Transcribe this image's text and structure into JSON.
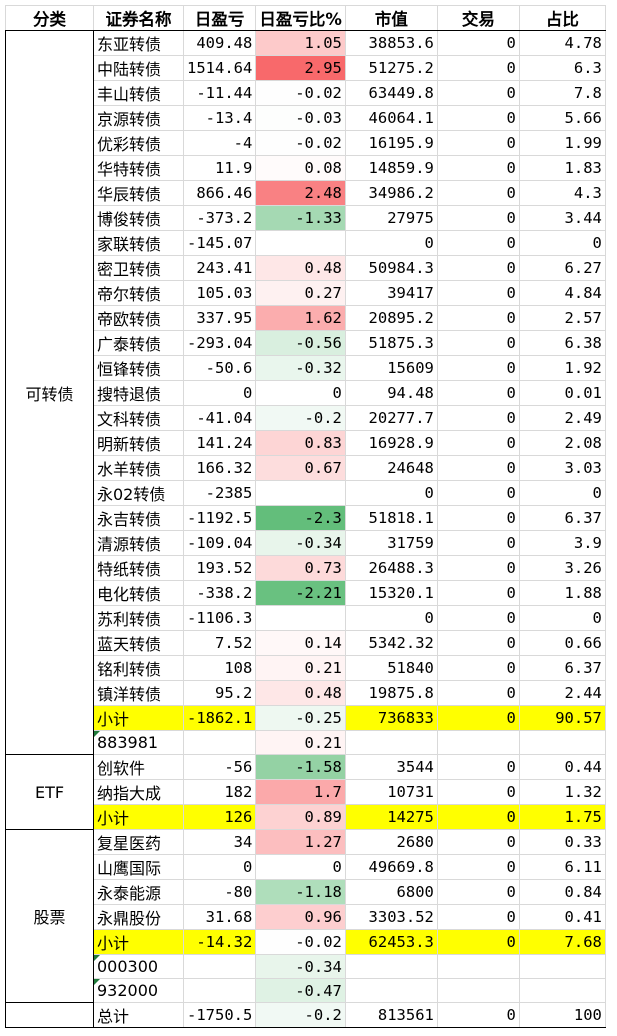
{
  "headers": [
    "分类",
    "证券名称",
    "日盈亏",
    "日盈亏比%",
    "市值",
    "交易",
    "占比"
  ],
  "colors": {
    "subtotal_highlight": "#ffff00",
    "positive_strong": "#f8696b",
    "negative_strong": "#63be7b",
    "neutral": "#ffffff"
  },
  "groups": [
    {
      "category": "可转债",
      "rows": [
        {
          "name": "东亚转债",
          "pnl": "409.48",
          "pct": "1.05",
          "pct_value": 1.05,
          "mv": "38853.6",
          "trade": "0",
          "share": "4.78"
        },
        {
          "name": "中陆转债",
          "pnl": "1514.64",
          "pct": "2.95",
          "pct_value": 2.95,
          "mv": "51275.2",
          "trade": "0",
          "share": "6.3"
        },
        {
          "name": "丰山转债",
          "pnl": "-11.44",
          "pct": "-0.02",
          "pct_value": -0.02,
          "mv": "63449.8",
          "trade": "0",
          "share": "7.8"
        },
        {
          "name": "京源转债",
          "pnl": "-13.4",
          "pct": "-0.03",
          "pct_value": -0.03,
          "mv": "46064.1",
          "trade": "0",
          "share": "5.66"
        },
        {
          "name": "优彩转债",
          "pnl": "-4",
          "pct": "-0.02",
          "pct_value": -0.02,
          "mv": "16195.9",
          "trade": "0",
          "share": "1.99"
        },
        {
          "name": "华特转债",
          "pnl": "11.9",
          "pct": "0.08",
          "pct_value": 0.08,
          "mv": "14859.9",
          "trade": "0",
          "share": "1.83"
        },
        {
          "name": "华辰转债",
          "pnl": "866.46",
          "pct": "2.48",
          "pct_value": 2.48,
          "mv": "34986.2",
          "trade": "0",
          "share": "4.3"
        },
        {
          "name": "博俊转债",
          "pnl": "-373.2",
          "pct": "-1.33",
          "pct_value": -1.33,
          "mv": "27975",
          "trade": "0",
          "share": "3.44"
        },
        {
          "name": "家联转债",
          "pnl": "-145.07",
          "pct": "",
          "pct_value": null,
          "mv": "0",
          "trade": "0",
          "share": "0"
        },
        {
          "name": "密卫转债",
          "pnl": "243.41",
          "pct": "0.48",
          "pct_value": 0.48,
          "mv": "50984.3",
          "trade": "0",
          "share": "6.27"
        },
        {
          "name": "帝尔转债",
          "pnl": "105.03",
          "pct": "0.27",
          "pct_value": 0.27,
          "mv": "39417",
          "trade": "0",
          "share": "4.84"
        },
        {
          "name": "帝欧转债",
          "pnl": "337.95",
          "pct": "1.62",
          "pct_value": 1.62,
          "mv": "20895.2",
          "trade": "0",
          "share": "2.57"
        },
        {
          "name": "广泰转债",
          "pnl": "-293.04",
          "pct": "-0.56",
          "pct_value": -0.56,
          "mv": "51875.3",
          "trade": "0",
          "share": "6.38"
        },
        {
          "name": "恒锋转债",
          "pnl": "-50.6",
          "pct": "-0.32",
          "pct_value": -0.32,
          "mv": "15609",
          "trade": "0",
          "share": "1.92"
        },
        {
          "name": "搜特退债",
          "pnl": "0",
          "pct": "0",
          "pct_value": 0,
          "mv": "94.48",
          "trade": "0",
          "share": "0.01"
        },
        {
          "name": "文科转债",
          "pnl": "-41.04",
          "pct": "-0.2",
          "pct_value": -0.2,
          "mv": "20277.7",
          "trade": "0",
          "share": "2.49"
        },
        {
          "name": "明新转债",
          "pnl": "141.24",
          "pct": "0.83",
          "pct_value": 0.83,
          "mv": "16928.9",
          "trade": "0",
          "share": "2.08"
        },
        {
          "name": "水羊转债",
          "pnl": "166.32",
          "pct": "0.67",
          "pct_value": 0.67,
          "mv": "24648",
          "trade": "0",
          "share": "3.03"
        },
        {
          "name": "永02转债",
          "pnl": "-2385",
          "pct": "",
          "pct_value": null,
          "mv": "0",
          "trade": "0",
          "share": "0"
        },
        {
          "name": "永吉转债",
          "pnl": "-1192.5",
          "pct": "-2.3",
          "pct_value": -2.3,
          "mv": "51818.1",
          "trade": "0",
          "share": "6.37"
        },
        {
          "name": "清源转债",
          "pnl": "-109.04",
          "pct": "-0.34",
          "pct_value": -0.34,
          "mv": "31759",
          "trade": "0",
          "share": "3.9"
        },
        {
          "name": "特纸转债",
          "pnl": "193.52",
          "pct": "0.73",
          "pct_value": 0.73,
          "mv": "26488.3",
          "trade": "0",
          "share": "3.26"
        },
        {
          "name": "电化转债",
          "pnl": "-338.2",
          "pct": "-2.21",
          "pct_value": -2.21,
          "mv": "15320.1",
          "trade": "0",
          "share": "1.88"
        },
        {
          "name": "苏利转债",
          "pnl": "-1106.3",
          "pct": "",
          "pct_value": null,
          "mv": "0",
          "trade": "0",
          "share": "0"
        },
        {
          "name": "蓝天转债",
          "pnl": "7.52",
          "pct": "0.14",
          "pct_value": 0.14,
          "mv": "5342.32",
          "trade": "0",
          "share": "0.66"
        },
        {
          "name": "铭利转债",
          "pnl": "108",
          "pct": "0.21",
          "pct_value": 0.21,
          "mv": "51840",
          "trade": "0",
          "share": "6.37"
        },
        {
          "name": "镇洋转债",
          "pnl": "95.2",
          "pct": "0.48",
          "pct_value": 0.48,
          "mv": "19875.8",
          "trade": "0",
          "share": "2.44"
        }
      ],
      "subtotal": {
        "name": "小计",
        "pnl": "-1862.1",
        "pct": "-0.25",
        "pct_value": -0.25,
        "mv": "736833",
        "trade": "0",
        "share": "90.57"
      },
      "index_rows": [
        {
          "name": "883981",
          "pct": "0.21",
          "pct_value": 0.21
        }
      ]
    },
    {
      "category": "ETF",
      "rows": [
        {
          "name": "创软件",
          "pnl": "-56",
          "pct": "-1.58",
          "pct_value": -1.58,
          "mv": "3544",
          "trade": "0",
          "share": "0.44"
        },
        {
          "name": "纳指大成",
          "pnl": "182",
          "pct": "1.7",
          "pct_value": 1.7,
          "mv": "10731",
          "trade": "0",
          "share": "1.32"
        }
      ],
      "subtotal": {
        "name": "小计",
        "pnl": "126",
        "pct": "0.89",
        "pct_value": 0.89,
        "mv": "14275",
        "trade": "0",
        "share": "1.75"
      },
      "index_rows": []
    },
    {
      "category": "股票",
      "rows": [
        {
          "name": "复星医药",
          "pnl": "34",
          "pct": "1.27",
          "pct_value": 1.27,
          "mv": "2680",
          "trade": "0",
          "share": "0.33"
        },
        {
          "name": "山鹰国际",
          "pnl": "0",
          "pct": "0",
          "pct_value": 0,
          "mv": "49669.8",
          "trade": "0",
          "share": "6.11"
        },
        {
          "name": "永泰能源",
          "pnl": "-80",
          "pct": "-1.18",
          "pct_value": -1.18,
          "mv": "6800",
          "trade": "0",
          "share": "0.84"
        },
        {
          "name": "永鼎股份",
          "pnl": "31.68",
          "pct": "0.96",
          "pct_value": 0.96,
          "mv": "3303.52",
          "trade": "0",
          "share": "0.41"
        }
      ],
      "subtotal": {
        "name": "小计",
        "pnl": "-14.32",
        "pct": "-0.02",
        "pct_value": -0.02,
        "mv": "62453.3",
        "trade": "0",
        "share": "7.68"
      },
      "index_rows": [
        {
          "name": "000300",
          "pct": "-0.34",
          "pct_value": -0.34
        },
        {
          "name": "932000",
          "pct": "-0.47",
          "pct_value": -0.47
        }
      ]
    }
  ],
  "total": {
    "name": "总计",
    "pnl": "-1750.5",
    "pct": "-0.2",
    "pct_value": -0.2,
    "mv": "813561",
    "trade": "0",
    "share": "100"
  }
}
